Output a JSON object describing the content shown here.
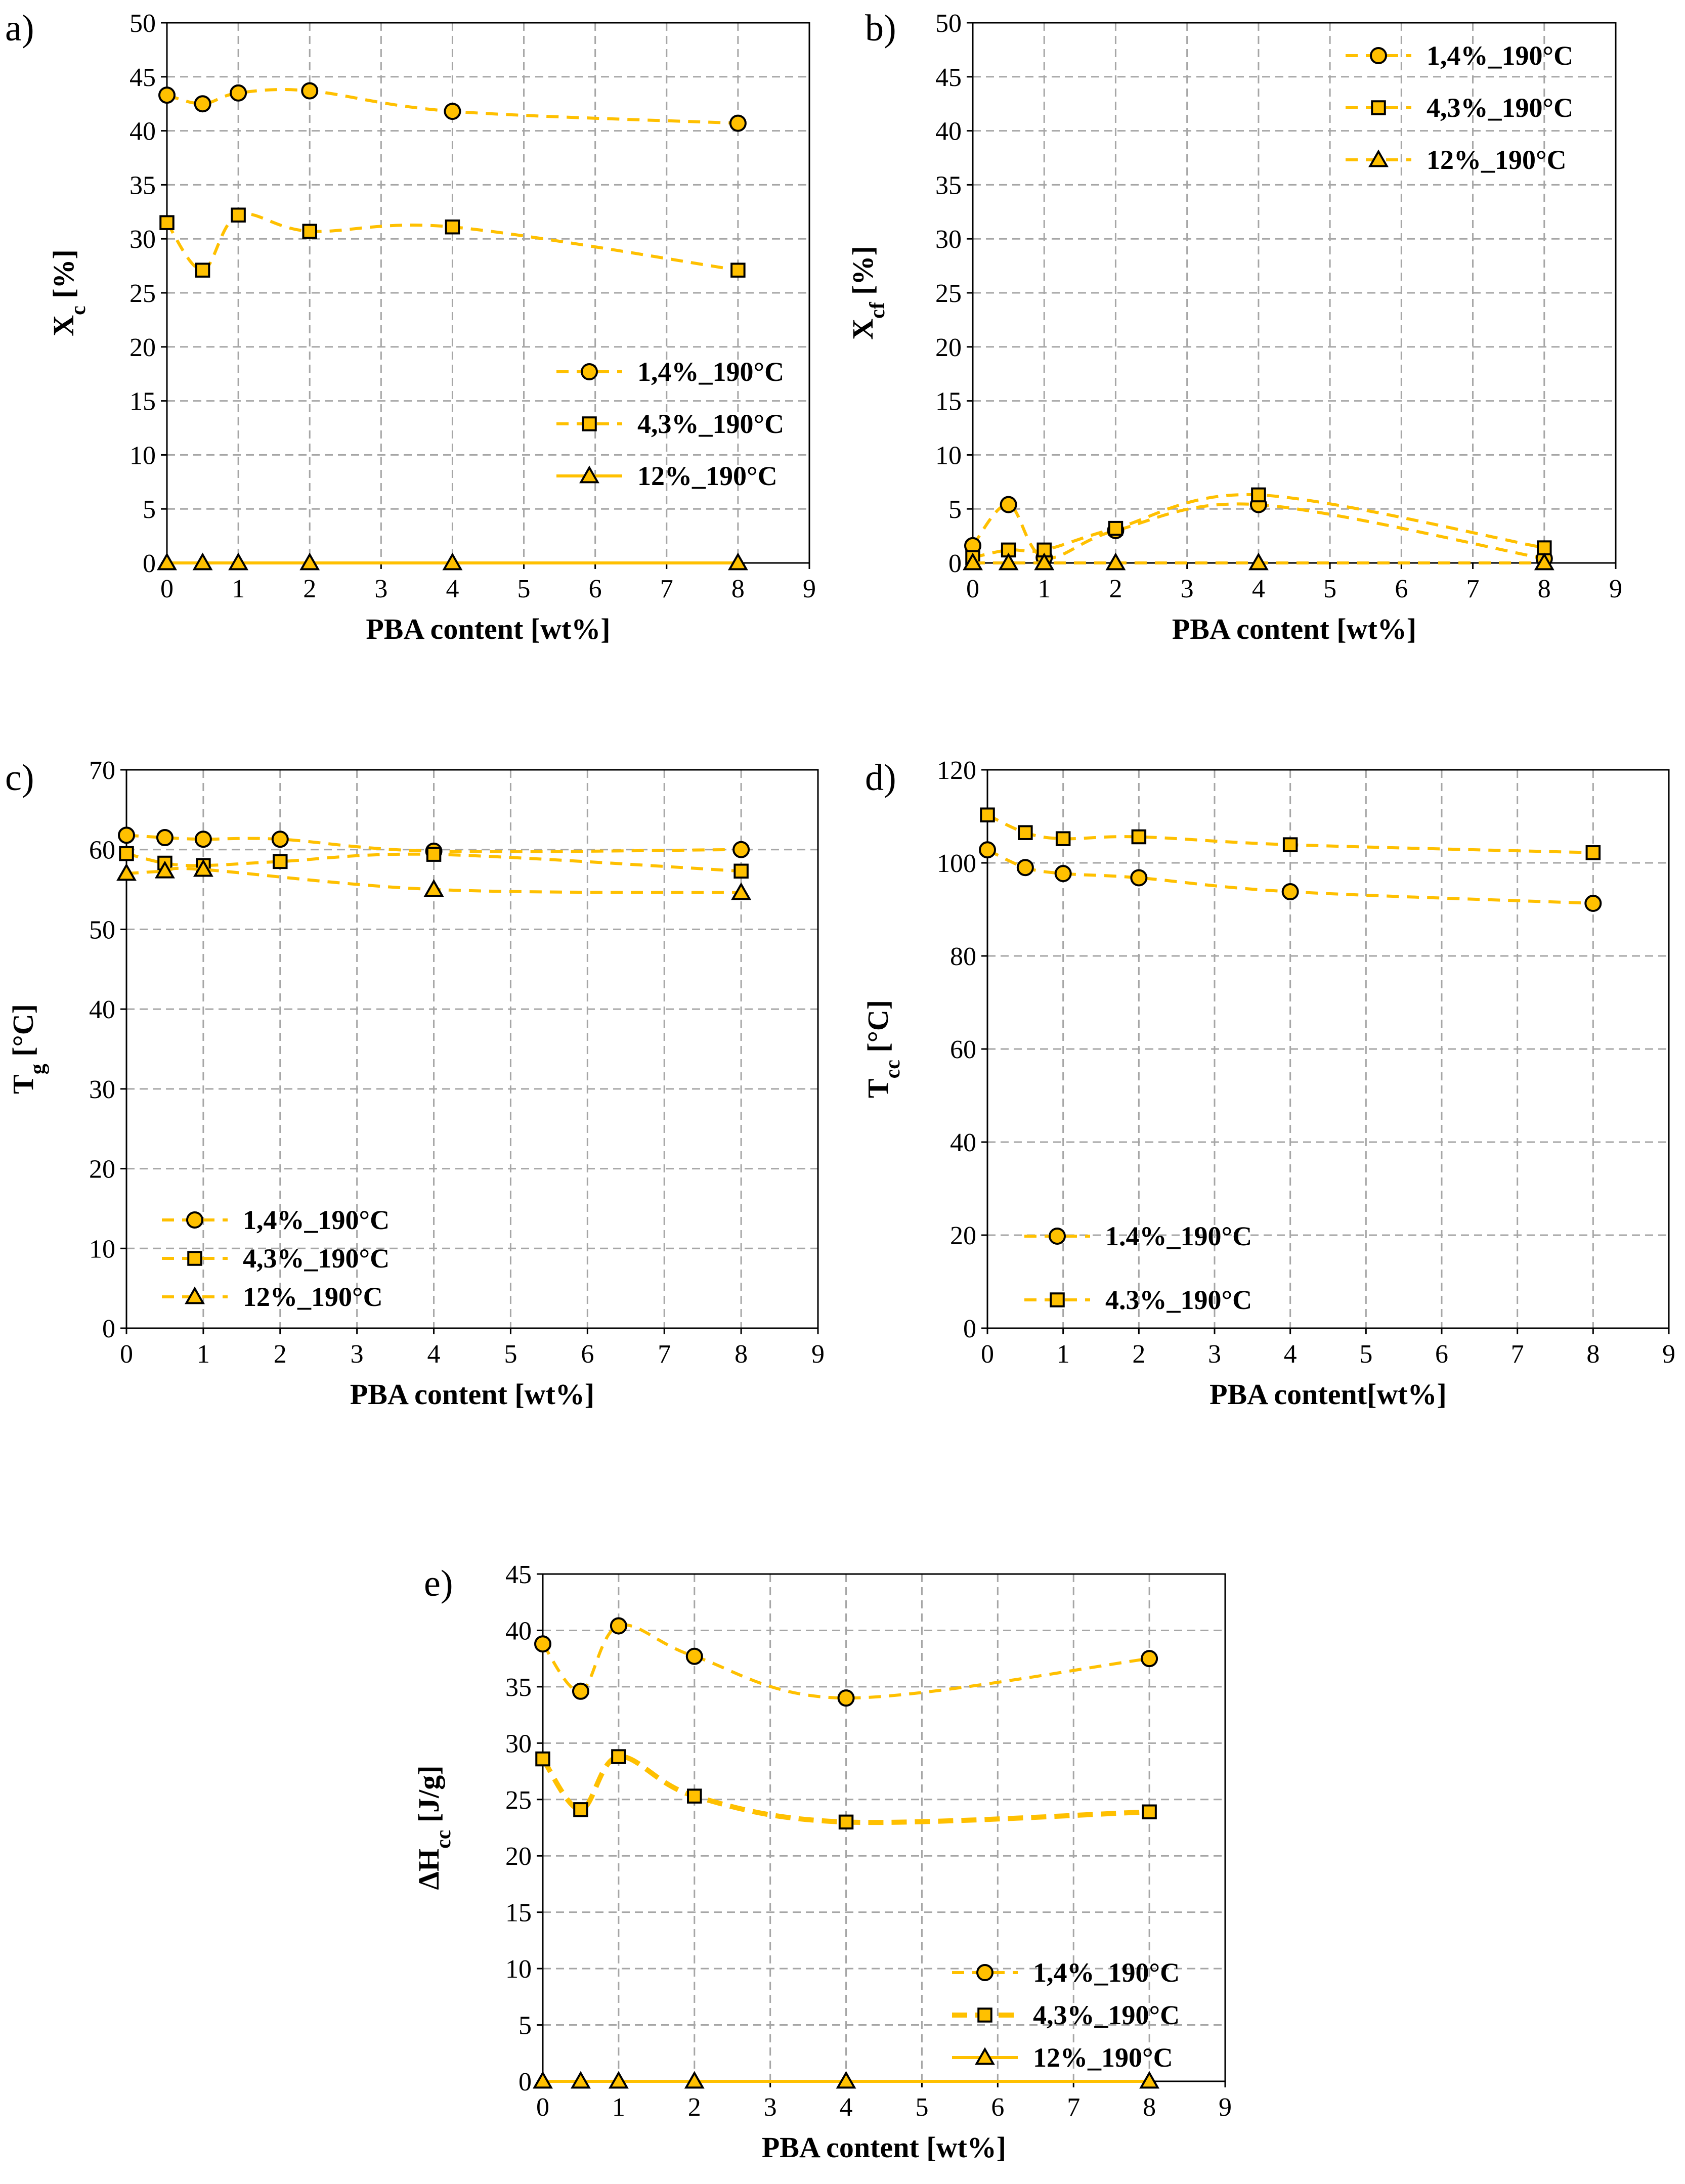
{
  "colors": {
    "series": "#FFC000",
    "line": "#FFC000",
    "marker_edge": "#000000",
    "grid": "#a6a6a6"
  },
  "chart_data": [
    {
      "id": "a",
      "label": "a)",
      "type": "line",
      "xlabel": "PBA content  [wt%]",
      "ylabel": {
        "main": "X",
        "sub": "c",
        "suffix": " [%]"
      },
      "xlim": [
        0,
        9
      ],
      "ylim": [
        0,
        50
      ],
      "xstep": 1,
      "ystep": 5,
      "legend_position": "middle-right",
      "series": [
        {
          "name": "1,4%_190°C",
          "marker": "circle",
          "dashed": true,
          "x": [
            0,
            0.5,
            1,
            2,
            4,
            8
          ],
          "y": [
            43.3,
            42.5,
            43.5,
            43.7,
            41.8,
            40.7
          ]
        },
        {
          "name": "4,3%_190°C",
          "marker": "square",
          "dashed": true,
          "x": [
            0,
            0.5,
            1,
            2,
            4,
            8
          ],
          "y": [
            31.5,
            27.1,
            32.2,
            30.7,
            31.1,
            27.1
          ]
        },
        {
          "name": "12%_190°C",
          "marker": "triangle",
          "dashed": false,
          "x": [
            0,
            0.5,
            1,
            2,
            4,
            8
          ],
          "y": [
            0,
            0,
            0,
            0,
            0,
            0
          ]
        }
      ]
    },
    {
      "id": "b",
      "label": "b)",
      "type": "line",
      "xlabel": "PBA content  [wt%]",
      "ylabel": {
        "main": "X",
        "sub": "cf",
        "suffix": " [%]"
      },
      "xlim": [
        0,
        9
      ],
      "ylim": [
        0,
        50
      ],
      "xstep": 1,
      "ystep": 5,
      "legend_position": "top-right",
      "series": [
        {
          "name": "1,4%_190°C",
          "marker": "circle",
          "dashed": true,
          "x": [
            0,
            0.5,
            1,
            2,
            4,
            8
          ],
          "y": [
            1.6,
            5.4,
            0.5,
            3.0,
            5.4,
            0.4
          ]
        },
        {
          "name": "4,3%_190°C",
          "marker": "square",
          "dashed": true,
          "x": [
            0,
            0.5,
            1,
            2,
            4,
            8
          ],
          "y": [
            0.5,
            1.2,
            1.2,
            3.2,
            6.3,
            1.4
          ]
        },
        {
          "name": "12%_190°C",
          "marker": "triangle",
          "dashed": true,
          "x": [
            0,
            0.5,
            1,
            2,
            4,
            8
          ],
          "y": [
            0,
            0,
            0,
            0,
            0,
            0
          ]
        }
      ]
    },
    {
      "id": "c",
      "label": "c)",
      "type": "line",
      "xlabel": "PBA content  [wt%]",
      "ylabel": {
        "main": "T",
        "sub": "g",
        "suffix": " [°C]"
      },
      "xlim": [
        0,
        9
      ],
      "ylim": [
        0,
        70
      ],
      "xstep": 1,
      "ystep": 10,
      "legend_position": "bottom-left",
      "series": [
        {
          "name": "1,4%_190°C",
          "marker": "circle",
          "dashed": true,
          "x": [
            0,
            0.5,
            1,
            2,
            4,
            8
          ],
          "y": [
            61.8,
            61.5,
            61.3,
            61.3,
            59.8,
            60.0
          ]
        },
        {
          "name": "4,3%_190°C",
          "marker": "square",
          "dashed": true,
          "x": [
            0,
            0.5,
            1,
            2,
            4,
            8
          ],
          "y": [
            59.5,
            58.3,
            58.0,
            58.5,
            59.4,
            57.3
          ]
        },
        {
          "name": "12%_190°C",
          "marker": "triangle",
          "dashed": true,
          "x": [
            0,
            0.5,
            1,
            2,
            4,
            8
          ],
          "y": [
            57.0,
            57.3,
            57.5,
            null,
            55.0,
            54.6
          ]
        }
      ]
    },
    {
      "id": "d",
      "label": "d)",
      "type": "line",
      "xlabel": "PBA content[wt%]",
      "ylabel": {
        "main": "T",
        "sub": "cc",
        "suffix": " [°C]"
      },
      "xlim": [
        0,
        9
      ],
      "ylim": [
        0,
        120
      ],
      "xstep": 1,
      "ystep": 20,
      "legend_position": "bottom-left",
      "series": [
        {
          "name": "1.4%_190°C",
          "marker": "circle",
          "dashed": true,
          "x": [
            0,
            0.5,
            1,
            2,
            4,
            8
          ],
          "y": [
            102.8,
            99.0,
            97.7,
            96.8,
            93.8,
            91.3
          ]
        },
        {
          "name": "4.3%_190°C",
          "marker": "square",
          "dashed": true,
          "x": [
            0,
            0.5,
            1,
            2,
            4,
            8
          ],
          "y": [
            110.3,
            106.5,
            105.2,
            105.6,
            103.9,
            102.2
          ]
        }
      ]
    },
    {
      "id": "e",
      "label": "e)",
      "type": "line",
      "xlabel": "PBA content  [wt%]",
      "ylabel": {
        "main": "ΔH",
        "sub": "cc",
        "suffix": " [J/g]"
      },
      "xlim": [
        0,
        9
      ],
      "ylim": [
        0,
        45
      ],
      "xstep": 1,
      "ystep": 5,
      "legend_position": "bottom-right",
      "series": [
        {
          "name": "1,4%_190°C",
          "marker": "circle",
          "dashed": true,
          "thick": false,
          "x": [
            0,
            0.5,
            1,
            2,
            4,
            8
          ],
          "y": [
            38.8,
            34.6,
            40.4,
            37.7,
            34.0,
            37.5
          ]
        },
        {
          "name": "4,3%_190°C",
          "marker": "square",
          "dashed": true,
          "thick": true,
          "x": [
            0,
            0.5,
            1,
            2,
            4,
            8
          ],
          "y": [
            28.6,
            24.1,
            28.8,
            25.3,
            23.0,
            23.9
          ]
        },
        {
          "name": "12%_190°C",
          "marker": "triangle",
          "dashed": false,
          "thick": false,
          "x": [
            0,
            0.5,
            1,
            2,
            4,
            8
          ],
          "y": [
            0,
            0,
            0,
            0,
            0,
            0
          ]
        }
      ]
    }
  ]
}
